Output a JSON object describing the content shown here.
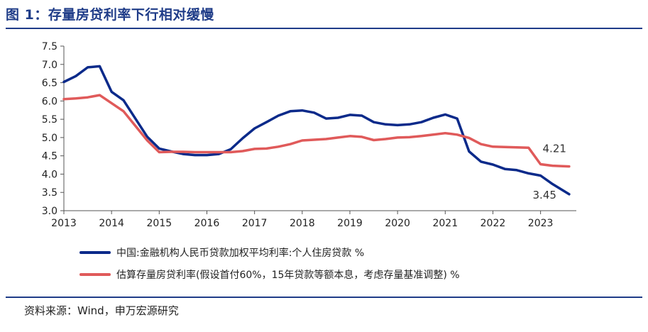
{
  "figure": {
    "title": "图 1：存量房贷利率下行相对缓慢",
    "source": "资料来源：Wind，申万宏源研究"
  },
  "colors": {
    "accent": "#1f3c88",
    "series1": "#0b2a8a",
    "series2": "#e05a5a"
  },
  "chart_data": {
    "type": "line",
    "title": "",
    "xlabel": "",
    "ylabel": "",
    "xlim": [
      2013.0,
      2023.75
    ],
    "ylim": [
      3.0,
      7.5
    ],
    "xticks": [
      "2013",
      "2014",
      "2015",
      "2016",
      "2017",
      "2018",
      "2019",
      "2020",
      "2021",
      "2022",
      "2023"
    ],
    "yticks": [
      "3.0",
      "3.5",
      "4.0",
      "4.5",
      "5.0",
      "5.5",
      "6.0",
      "6.5",
      "7.0",
      "7.5"
    ],
    "grid": false,
    "legend_position": "bottom",
    "series": [
      {
        "name": "中国:金融机构人民币贷款加权平均利率:个人住房贷款 %",
        "x": [
          2013.0,
          2013.25,
          2013.5,
          2013.75,
          2014.0,
          2014.25,
          2014.5,
          2014.75,
          2015.0,
          2015.25,
          2015.5,
          2015.75,
          2016.0,
          2016.25,
          2016.5,
          2016.75,
          2017.0,
          2017.25,
          2017.5,
          2017.75,
          2018.0,
          2018.25,
          2018.5,
          2018.75,
          2019.0,
          2019.25,
          2019.5,
          2019.75,
          2020.0,
          2020.25,
          2020.5,
          2020.75,
          2021.0,
          2021.25,
          2021.5,
          2021.75,
          2022.0,
          2022.25,
          2022.5,
          2022.75,
          2023.0,
          2023.25,
          2023.6
        ],
        "values": [
          6.52,
          6.68,
          6.92,
          6.95,
          6.25,
          6.02,
          5.52,
          5.02,
          4.7,
          4.62,
          4.55,
          4.52,
          4.52,
          4.55,
          4.68,
          4.98,
          5.25,
          5.42,
          5.6,
          5.72,
          5.74,
          5.68,
          5.52,
          5.54,
          5.62,
          5.6,
          5.42,
          5.36,
          5.34,
          5.36,
          5.42,
          5.54,
          5.63,
          5.52,
          4.62,
          4.34,
          4.26,
          4.14,
          4.11,
          4.02,
          3.96,
          3.73,
          3.45
        ],
        "end_label": "3.45"
      },
      {
        "name": "估算存量房贷利率(假设首付60%，15年贷款等额本息，考虑存量基准调整) %",
        "x": [
          2013.0,
          2013.25,
          2013.5,
          2013.75,
          2014.0,
          2014.25,
          2014.5,
          2014.75,
          2015.0,
          2015.25,
          2015.5,
          2015.75,
          2016.0,
          2016.25,
          2016.5,
          2016.75,
          2017.0,
          2017.25,
          2017.5,
          2017.75,
          2018.0,
          2018.25,
          2018.5,
          2018.75,
          2019.0,
          2019.25,
          2019.5,
          2019.75,
          2020.0,
          2020.25,
          2020.5,
          2020.75,
          2021.0,
          2021.25,
          2021.5,
          2021.75,
          2022.0,
          2022.25,
          2022.5,
          2022.75,
          2023.0,
          2023.25,
          2023.6
        ],
        "values": [
          6.05,
          6.07,
          6.1,
          6.16,
          5.94,
          5.72,
          5.32,
          4.92,
          4.6,
          4.61,
          4.61,
          4.6,
          4.6,
          4.6,
          4.6,
          4.63,
          4.69,
          4.7,
          4.75,
          4.82,
          4.92,
          4.94,
          4.96,
          5.0,
          5.04,
          5.02,
          4.93,
          4.96,
          5.0,
          5.01,
          5.04,
          5.08,
          5.12,
          5.08,
          4.99,
          4.82,
          4.75,
          4.74,
          4.73,
          4.72,
          4.27,
          4.23,
          4.21
        ],
        "end_label": "4.21"
      }
    ]
  }
}
